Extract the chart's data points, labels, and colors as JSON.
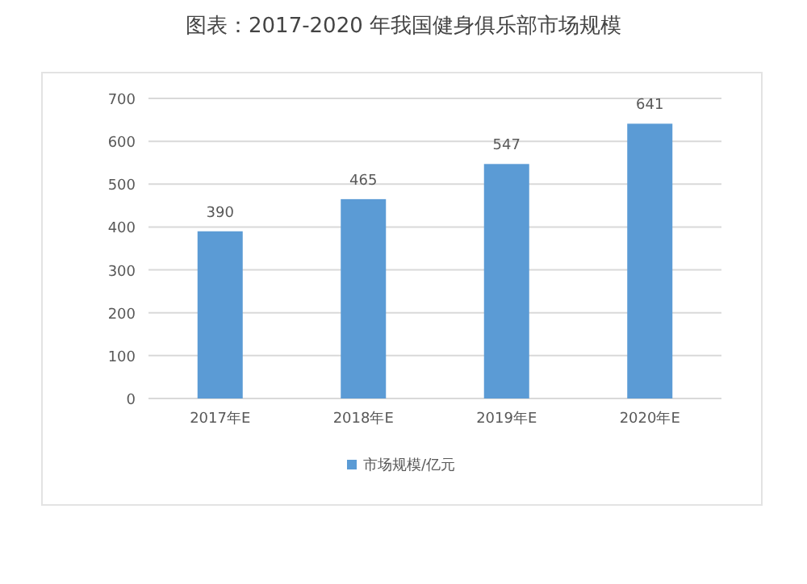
{
  "chart_data": {
    "type": "bar",
    "title": "图表：2017-2020 年我国健身俱乐部市场规模",
    "categories": [
      "2017年E",
      "2018年E",
      "2019年E",
      "2020年E"
    ],
    "series": [
      {
        "name": "市场规模/亿元",
        "color": "#5b9bd5",
        "values": [
          390,
          465,
          547,
          641
        ]
      }
    ],
    "ylim": [
      0,
      700
    ],
    "yticks": [
      0,
      100,
      200,
      300,
      400,
      500,
      600,
      700
    ],
    "grid": "y",
    "legend": "bottom",
    "data_labels": true
  }
}
